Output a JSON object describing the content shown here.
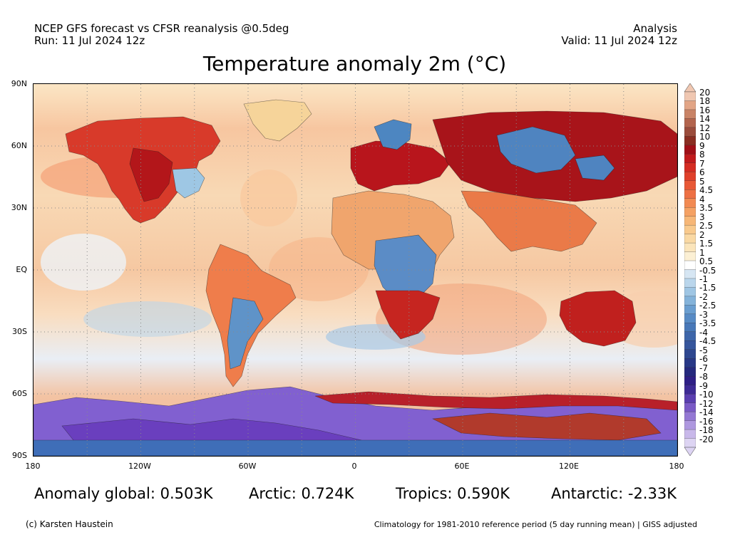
{
  "header": {
    "left_line1": "NCEP GFS forecast vs CFSR reanalysis @0.5deg",
    "left_line2": "Run: 11 Jul 2024 12z",
    "right_line1": "Analysis",
    "right_line2": "Valid: 11 Jul 2024 12z"
  },
  "title": "Temperature anomaly 2m (°C)",
  "map": {
    "lat_labels": [
      "90N",
      "60N",
      "30N",
      "EQ",
      "30S",
      "60S",
      "90S"
    ],
    "lon_labels": [
      "180",
      "120W",
      "60W",
      "0",
      "60E",
      "120E",
      "180"
    ],
    "gridline_color": "#8a8a8a",
    "regions": [
      {
        "name": "north-america-warm",
        "fill": "#d83a2a"
      },
      {
        "name": "north-america-hot",
        "fill": "#b3161a"
      },
      {
        "name": "us-east-cool",
        "fill": "#9ec7e4"
      },
      {
        "name": "greenland",
        "fill": "#f6d49a"
      },
      {
        "name": "south-america",
        "fill": "#ef7d4b"
      },
      {
        "name": "south-america-cool",
        "fill": "#5f93c8"
      },
      {
        "name": "europe-hot",
        "fill": "#b8151c"
      },
      {
        "name": "scandinavia-cool",
        "fill": "#4d86c1"
      },
      {
        "name": "siberia-hot",
        "fill": "#a8141a"
      },
      {
        "name": "siberia-cool",
        "fill": "#4f84c0"
      },
      {
        "name": "africa-north",
        "fill": "#f0a56d"
      },
      {
        "name": "africa-central-cool",
        "fill": "#5b8cc6"
      },
      {
        "name": "africa-south",
        "fill": "#c62520"
      },
      {
        "name": "asia-south",
        "fill": "#ea7a48"
      },
      {
        "name": "australia-hot",
        "fill": "#c0201e"
      },
      {
        "name": "antarctica-cold",
        "fill": "#8160d0"
      },
      {
        "name": "antarctica-deep",
        "fill": "#6a3fbe"
      },
      {
        "name": "antarctica-warm",
        "fill": "#b13a2c"
      },
      {
        "name": "southern-ocean-hot",
        "fill": "#b8202a"
      },
      {
        "name": "southern-ocean-cool",
        "fill": "#3f6eb8"
      }
    ]
  },
  "colorbar": {
    "levels": [
      "20",
      "18",
      "16",
      "14",
      "12",
      "10",
      "9",
      "8",
      "7",
      "6",
      "5",
      "4.5",
      "4",
      "3.5",
      "3",
      "2.5",
      "2",
      "1.5",
      "1",
      "0.5",
      "-0.5",
      "-1",
      "-1.5",
      "-2",
      "-2.5",
      "-3",
      "-3.5",
      "-4",
      "-4.5",
      "-5",
      "-6",
      "-7",
      "-8",
      "-9",
      "-10",
      "-12",
      "-14",
      "-16",
      "-18",
      "-20"
    ],
    "colors": [
      "#f0c7b1",
      "#e2a586",
      "#c98366",
      "#b3644d",
      "#9b4c3c",
      "#8a2e22",
      "#a00f17",
      "#c11a1c",
      "#d52c22",
      "#e0402a",
      "#e85836",
      "#ee7043",
      "#f28a52",
      "#f5a163",
      "#f7b777",
      "#f9ca8d",
      "#fad9a4",
      "#fbe5bb",
      "#fcf0d4",
      "#ffffff",
      "#d6e6f3",
      "#bad6ec",
      "#9fc6e4",
      "#84b3da",
      "#6a9ed0",
      "#578bc5",
      "#4878b8",
      "#3d66aa",
      "#36569c",
      "#2e4790",
      "#283887",
      "#25297e",
      "#2e1f86",
      "#3d2a95",
      "#5a3eb0",
      "#7a5ac6",
      "#9478d4",
      "#ae98df",
      "#c8b8ea",
      "#ddd4f3"
    ]
  },
  "stats": {
    "global": "Anomaly global: 0.503K",
    "arctic": "Arctic: 0.724K",
    "tropics": "Tropics: 0.590K",
    "antarctic": "Antarctic: -2.33K"
  },
  "footer": {
    "credit": "(c) Karsten Haustein",
    "climatology": "Climatology for 1981-2010 reference period (5 day running mean) | GISS adjusted"
  }
}
